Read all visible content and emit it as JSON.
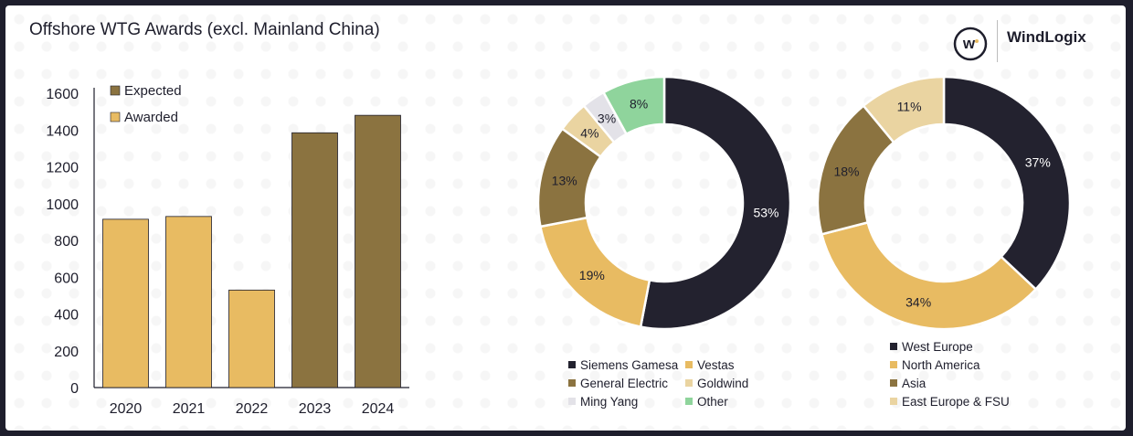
{
  "header": {
    "title": "Offshore WTG Awards (excl. Mainland China)",
    "brand": "WindLogix",
    "logo_letter": "w",
    "logo_icon": "windlogix-logo-icon"
  },
  "colors": {
    "dark": "#23222f",
    "gold": "#e8bb62",
    "olive": "#8b7340",
    "beige": "#ead4a1",
    "light_gray": "#e3e2e8",
    "green": "#8fd49c",
    "text": "#1e1e2c"
  },
  "chart_data": [
    {
      "type": "bar",
      "title": "Offshore WTG Awards (excl. Mainland China)",
      "categories": [
        "2020",
        "2021",
        "2022",
        "2023",
        "2024"
      ],
      "values": [
        915,
        930,
        530,
        1385,
        1480
      ],
      "bar_series": [
        "Awarded",
        "Awarded",
        "Awarded",
        "Expected",
        "Expected"
      ],
      "series": [
        {
          "name": "Expected",
          "color": "#8b7340"
        },
        {
          "name": "Awarded",
          "color": "#e8bb62"
        }
      ],
      "yticks": [
        "0",
        "200",
        "400",
        "600",
        "800",
        "1000",
        "1200",
        "1400",
        "1600"
      ],
      "ylim": [
        0,
        1600
      ],
      "legend_position": "top-left",
      "grid": false
    },
    {
      "type": "pie",
      "style": "donut",
      "slices": [
        {
          "label": "Siemens Gamesa",
          "value": 53,
          "text": "53%",
          "color": "#23222f"
        },
        {
          "label": "Vestas",
          "value": 19,
          "text": "19%",
          "color": "#e8bb62"
        },
        {
          "label": "General Electric",
          "value": 13,
          "text": "13%",
          "color": "#8b7340"
        },
        {
          "label": "Goldwind",
          "value": 4,
          "text": "4%",
          "color": "#ead4a1"
        },
        {
          "label": "Ming Yang",
          "value": 3,
          "text": "3%",
          "color": "#e3e2e8"
        },
        {
          "label": "Other",
          "value": 8,
          "text": "8%",
          "color": "#8fd49c"
        }
      ],
      "legend_position": "bottom"
    },
    {
      "type": "pie",
      "style": "donut",
      "slices": [
        {
          "label": "West Europe",
          "value": 37,
          "text": "37%",
          "color": "#23222f"
        },
        {
          "label": "North America",
          "value": 34,
          "text": "34%",
          "color": "#e8bb62"
        },
        {
          "label": "Asia",
          "value": 18,
          "text": "18%",
          "color": "#8b7340"
        },
        {
          "label": "East Europe & FSU",
          "value": 11,
          "text": "11%",
          "color": "#ead4a1"
        }
      ],
      "legend_position": "bottom"
    }
  ]
}
